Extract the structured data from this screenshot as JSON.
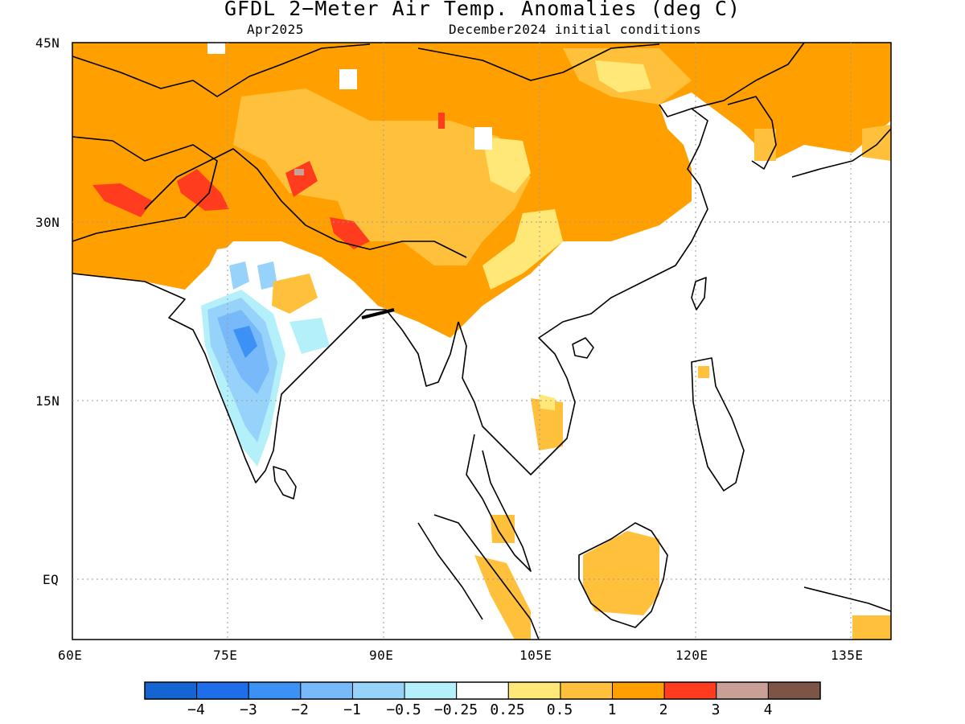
{
  "title": "GFDL 2−Meter Air Temp. Anomalies (deg C)",
  "subtitle_left": "Apr2025",
  "subtitle_right": "December2024 initial conditions",
  "lat_labels": [
    "45N",
    "30N",
    "15N",
    "EQ"
  ],
  "lon_labels": [
    "60E",
    "75E",
    "90E",
    "105E",
    "120E",
    "135E"
  ],
  "colorbar": {
    "colors": [
      "#1464d2",
      "#1e6eeb",
      "#3c91f5",
      "#78b9fa",
      "#96d2fa",
      "#b4f0fa",
      "#ffffff",
      "#ffe878",
      "#ffc03c",
      "#ffa000",
      "#ff3c1e",
      "#c8a096",
      "#7d5546"
    ],
    "labels": [
      "−4",
      "−3",
      "−2",
      "−1",
      "−0.5",
      "−0.25",
      "0.25",
      "0.5",
      "1",
      "2",
      "3",
      "4"
    ]
  }
}
